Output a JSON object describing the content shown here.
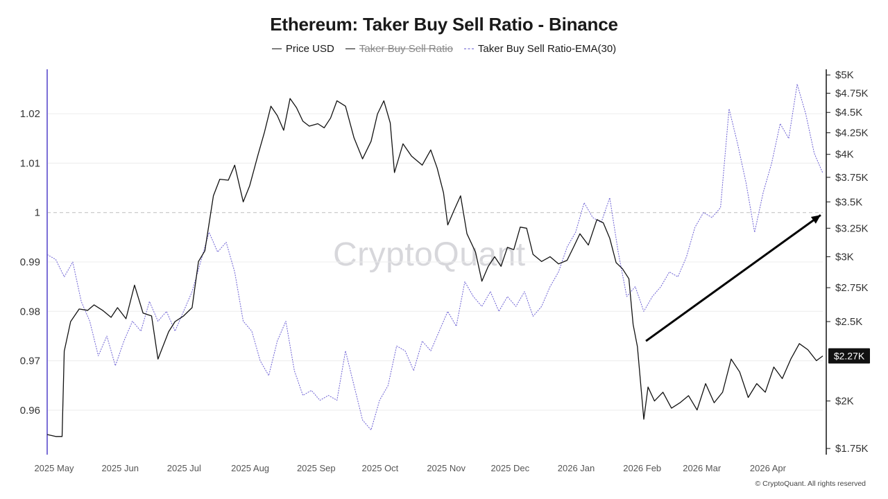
{
  "title": "Ethereum: Taker Buy Sell Ratio - Binance",
  "watermark": "CryptoQuant",
  "copyright": "© CryptoQuant. All rights reserved",
  "legend": [
    {
      "label": "Price USD",
      "hidden": false
    },
    {
      "label": "Taker Buy Sell Ratio",
      "hidden": true
    },
    {
      "label": "Taker Buy Sell Ratio-EMA(30)",
      "hidden": false
    }
  ],
  "colors": {
    "price": "#111111",
    "ema": "#6b5fd3",
    "left_axis": "#7b6fd6",
    "grid": "#ececec",
    "refline": "#bdbdbd",
    "badge_bg": "#111111"
  },
  "chart_data": {
    "type": "line",
    "title": "Ethereum: Taker Buy Sell Ratio - Binance",
    "x_ticks": [
      "2025 May",
      "2025 Jun",
      "2025 Jul",
      "2025 Aug",
      "2025 Sep",
      "2025 Oct",
      "2025 Nov",
      "2025 Dec",
      "2026 Jan",
      "2026 Feb",
      "2026 Mar",
      "2026 Apr"
    ],
    "x_range": [
      "2025-05-01",
      "2026-04-30"
    ],
    "left_axis": {
      "ticks": [
        "1.02",
        "1.01",
        "1",
        "0.99",
        "0.98",
        "0.97",
        "0.96"
      ],
      "tick_values": [
        1.02,
        1.01,
        1.0,
        0.99,
        0.98,
        0.97,
        0.96
      ],
      "range": [
        0.951,
        1.029
      ]
    },
    "right_axis": {
      "ticks": [
        "$5K",
        "$4.75K",
        "$4.5K",
        "$4.25K",
        "$4K",
        "$3.75K",
        "$3.5K",
        "$3.25K",
        "$3K",
        "$2.75K",
        "$2.5K",
        "$2K",
        "$1.75K"
      ],
      "tick_values": [
        5000,
        4750,
        4500,
        4250,
        4000,
        3750,
        3500,
        3250,
        3000,
        2750,
        2500,
        2000,
        1750
      ],
      "scale": "log",
      "range": [
        1720,
        5080
      ]
    },
    "reference_line": 1.0,
    "last_value_label": "$2.27K",
    "grid": true,
    "legend_position": "top-center",
    "series": [
      {
        "name": "Price USD",
        "axis": "right",
        "points": [
          [
            "2025-05-01",
            1820
          ],
          [
            "2025-05-05",
            1810
          ],
          [
            "2025-05-08",
            1810
          ],
          [
            "2025-05-09",
            2300
          ],
          [
            "2025-05-12",
            2500
          ],
          [
            "2025-05-16",
            2590
          ],
          [
            "2025-05-20",
            2580
          ],
          [
            "2025-05-23",
            2620
          ],
          [
            "2025-05-27",
            2580
          ],
          [
            "2025-05-31",
            2530
          ],
          [
            "2025-06-03",
            2600
          ],
          [
            "2025-06-07",
            2520
          ],
          [
            "2025-06-11",
            2770
          ],
          [
            "2025-06-15",
            2560
          ],
          [
            "2025-06-19",
            2540
          ],
          [
            "2025-06-22",
            2250
          ],
          [
            "2025-06-27",
            2430
          ],
          [
            "2025-06-30",
            2500
          ],
          [
            "2025-07-04",
            2540
          ],
          [
            "2025-07-08",
            2600
          ],
          [
            "2025-07-11",
            2960
          ],
          [
            "2025-07-14",
            3050
          ],
          [
            "2025-07-18",
            3560
          ],
          [
            "2025-07-21",
            3730
          ],
          [
            "2025-07-25",
            3720
          ],
          [
            "2025-07-28",
            3880
          ],
          [
            "2025-08-01",
            3500
          ],
          [
            "2025-08-04",
            3660
          ],
          [
            "2025-08-08",
            4000
          ],
          [
            "2025-08-11",
            4260
          ],
          [
            "2025-08-14",
            4580
          ],
          [
            "2025-08-17",
            4460
          ],
          [
            "2025-08-20",
            4280
          ],
          [
            "2025-08-23",
            4680
          ],
          [
            "2025-08-26",
            4560
          ],
          [
            "2025-08-29",
            4390
          ],
          [
            "2025-09-01",
            4330
          ],
          [
            "2025-09-05",
            4360
          ],
          [
            "2025-09-08",
            4310
          ],
          [
            "2025-09-11",
            4430
          ],
          [
            "2025-09-14",
            4650
          ],
          [
            "2025-09-18",
            4580
          ],
          [
            "2025-09-22",
            4190
          ],
          [
            "2025-09-26",
            3950
          ],
          [
            "2025-09-30",
            4150
          ],
          [
            "2025-10-03",
            4480
          ],
          [
            "2025-10-06",
            4650
          ],
          [
            "2025-10-09",
            4370
          ],
          [
            "2025-10-11",
            3800
          ],
          [
            "2025-10-15",
            4120
          ],
          [
            "2025-10-19",
            3980
          ],
          [
            "2025-10-24",
            3880
          ],
          [
            "2025-10-28",
            4050
          ],
          [
            "2025-10-31",
            3850
          ],
          [
            "2025-11-03",
            3590
          ],
          [
            "2025-11-05",
            3280
          ],
          [
            "2025-11-08",
            3420
          ],
          [
            "2025-11-11",
            3560
          ],
          [
            "2025-11-14",
            3200
          ],
          [
            "2025-11-18",
            3040
          ],
          [
            "2025-11-21",
            2800
          ],
          [
            "2025-11-24",
            2920
          ],
          [
            "2025-11-27",
            3000
          ],
          [
            "2025-11-30",
            2920
          ],
          [
            "2025-12-03",
            3080
          ],
          [
            "2025-12-06",
            3060
          ],
          [
            "2025-12-09",
            3260
          ],
          [
            "2025-12-12",
            3250
          ],
          [
            "2025-12-15",
            3020
          ],
          [
            "2025-12-19",
            2960
          ],
          [
            "2025-12-23",
            3000
          ],
          [
            "2025-12-27",
            2940
          ],
          [
            "2025-12-31",
            2970
          ],
          [
            "2026-01-03",
            3080
          ],
          [
            "2026-01-06",
            3200
          ],
          [
            "2026-01-10",
            3100
          ],
          [
            "2026-01-14",
            3330
          ],
          [
            "2026-01-17",
            3300
          ],
          [
            "2026-01-20",
            3160
          ],
          [
            "2026-01-23",
            2950
          ],
          [
            "2026-01-26",
            2900
          ],
          [
            "2026-01-29",
            2820
          ],
          [
            "2026-01-31",
            2480
          ],
          [
            "2026-02-02",
            2330
          ],
          [
            "2026-02-05",
            1900
          ],
          [
            "2026-02-07",
            2080
          ],
          [
            "2026-02-10",
            2000
          ],
          [
            "2026-02-14",
            2050
          ],
          [
            "2026-02-18",
            1960
          ],
          [
            "2026-02-22",
            1990
          ],
          [
            "2026-02-26",
            2030
          ],
          [
            "2026-03-02",
            1950
          ],
          [
            "2026-03-06",
            2100
          ],
          [
            "2026-03-10",
            1990
          ],
          [
            "2026-03-14",
            2050
          ],
          [
            "2026-03-18",
            2250
          ],
          [
            "2026-03-22",
            2170
          ],
          [
            "2026-03-26",
            2020
          ],
          [
            "2026-03-30",
            2100
          ],
          [
            "2026-04-03",
            2050
          ],
          [
            "2026-04-07",
            2200
          ],
          [
            "2026-04-11",
            2130
          ],
          [
            "2026-04-15",
            2250
          ],
          [
            "2026-04-19",
            2350
          ],
          [
            "2026-04-23",
            2310
          ],
          [
            "2026-04-27",
            2240
          ],
          [
            "2026-04-30",
            2270
          ]
        ]
      },
      {
        "name": "Taker Buy Sell Ratio-EMA(30)",
        "axis": "left",
        "points": [
          [
            "2025-05-01",
            0.9915
          ],
          [
            "2025-05-05",
            0.9905
          ],
          [
            "2025-05-09",
            0.987
          ],
          [
            "2025-05-13",
            0.99
          ],
          [
            "2025-05-17",
            0.982
          ],
          [
            "2025-05-21",
            0.978
          ],
          [
            "2025-05-25",
            0.971
          ],
          [
            "2025-05-29",
            0.975
          ],
          [
            "2025-06-02",
            0.969
          ],
          [
            "2025-06-06",
            0.974
          ],
          [
            "2025-06-10",
            0.978
          ],
          [
            "2025-06-14",
            0.976
          ],
          [
            "2025-06-18",
            0.982
          ],
          [
            "2025-06-22",
            0.978
          ],
          [
            "2025-06-26",
            0.98
          ],
          [
            "2025-06-30",
            0.976
          ],
          [
            "2025-07-04",
            0.98
          ],
          [
            "2025-07-08",
            0.984
          ],
          [
            "2025-07-12",
            0.99
          ],
          [
            "2025-07-16",
            0.996
          ],
          [
            "2025-07-20",
            0.992
          ],
          [
            "2025-07-24",
            0.994
          ],
          [
            "2025-07-28",
            0.988
          ],
          [
            "2025-08-01",
            0.978
          ],
          [
            "2025-08-05",
            0.976
          ],
          [
            "2025-08-09",
            0.97
          ],
          [
            "2025-08-13",
            0.967
          ],
          [
            "2025-08-17",
            0.974
          ],
          [
            "2025-08-21",
            0.978
          ],
          [
            "2025-08-25",
            0.968
          ],
          [
            "2025-08-29",
            0.963
          ],
          [
            "2025-09-02",
            0.964
          ],
          [
            "2025-09-06",
            0.962
          ],
          [
            "2025-09-10",
            0.963
          ],
          [
            "2025-09-14",
            0.962
          ],
          [
            "2025-09-18",
            0.972
          ],
          [
            "2025-09-22",
            0.965
          ],
          [
            "2025-09-26",
            0.958
          ],
          [
            "2025-09-30",
            0.956
          ],
          [
            "2025-10-04",
            0.962
          ],
          [
            "2025-10-08",
            0.965
          ],
          [
            "2025-10-12",
            0.973
          ],
          [
            "2025-10-16",
            0.972
          ],
          [
            "2025-10-20",
            0.968
          ],
          [
            "2025-10-24",
            0.974
          ],
          [
            "2025-10-28",
            0.972
          ],
          [
            "2025-11-01",
            0.976
          ],
          [
            "2025-11-05",
            0.98
          ],
          [
            "2025-11-09",
            0.977
          ],
          [
            "2025-11-13",
            0.986
          ],
          [
            "2025-11-17",
            0.983
          ],
          [
            "2025-11-21",
            0.981
          ],
          [
            "2025-11-25",
            0.984
          ],
          [
            "2025-11-29",
            0.98
          ],
          [
            "2025-12-03",
            0.983
          ],
          [
            "2025-12-07",
            0.981
          ],
          [
            "2025-12-11",
            0.984
          ],
          [
            "2025-12-15",
            0.979
          ],
          [
            "2025-12-19",
            0.981
          ],
          [
            "2025-12-23",
            0.985
          ],
          [
            "2025-12-27",
            0.988
          ],
          [
            "2025-12-31",
            0.993
          ],
          [
            "2026-01-04",
            0.996
          ],
          [
            "2026-01-08",
            1.002
          ],
          [
            "2026-01-12",
            0.999
          ],
          [
            "2026-01-16",
            0.998
          ],
          [
            "2026-01-20",
            1.003
          ],
          [
            "2026-01-24",
            0.992
          ],
          [
            "2026-01-28",
            0.983
          ],
          [
            "2026-02-01",
            0.985
          ],
          [
            "2026-02-05",
            0.98
          ],
          [
            "2026-02-09",
            0.983
          ],
          [
            "2026-02-13",
            0.985
          ],
          [
            "2026-02-17",
            0.988
          ],
          [
            "2026-02-21",
            0.987
          ],
          [
            "2026-02-25",
            0.991
          ],
          [
            "2026-03-01",
            0.997
          ],
          [
            "2026-03-05",
            1.0
          ],
          [
            "2026-03-09",
            0.999
          ],
          [
            "2026-03-13",
            1.001
          ],
          [
            "2026-03-17",
            1.021
          ],
          [
            "2026-03-21",
            1.014
          ],
          [
            "2026-03-25",
            1.006
          ],
          [
            "2026-03-29",
            0.996
          ],
          [
            "2026-04-02",
            1.004
          ],
          [
            "2026-04-06",
            1.01
          ],
          [
            "2026-04-10",
            1.018
          ],
          [
            "2026-04-14",
            1.015
          ],
          [
            "2026-04-18",
            1.026
          ],
          [
            "2026-04-22",
            1.02
          ],
          [
            "2026-04-26",
            1.012
          ],
          [
            "2026-04-30",
            1.008
          ]
        ]
      }
    ],
    "annotations": [
      {
        "type": "arrow",
        "from": [
          "2026-02-06",
          0.974
        ],
        "to": [
          "2026-04-29",
          0.9995
        ]
      }
    ]
  }
}
